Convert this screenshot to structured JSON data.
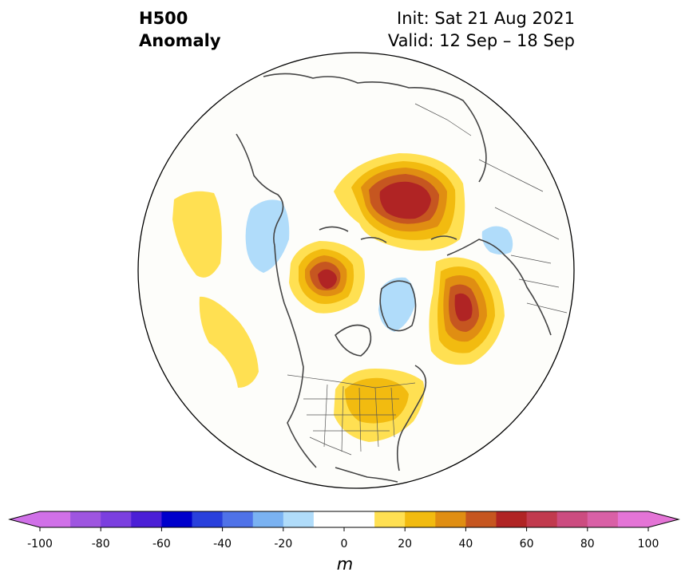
{
  "title": {
    "left_line1": "H500",
    "left_line2": "Anomaly",
    "right_line1": "Init: Sat 21 Aug 2021",
    "right_line2": "Valid: 12 Sep – 18 Sep"
  },
  "colorbar": {
    "unit": "m",
    "ticks": [
      "-100",
      "-80",
      "-60",
      "-40",
      "-20",
      "0",
      "20",
      "40",
      "60",
      "80",
      "100"
    ],
    "bins": [
      {
        "from": -100,
        "to": -90,
        "color": "#d070e8"
      },
      {
        "from": -90,
        "to": -80,
        "color": "#9e55e0"
      },
      {
        "from": -80,
        "to": -70,
        "color": "#7b3fdf"
      },
      {
        "from": -70,
        "to": -60,
        "color": "#4b1fd6"
      },
      {
        "from": -60,
        "to": -50,
        "color": "#0000cc"
      },
      {
        "from": -50,
        "to": -40,
        "color": "#2940dc"
      },
      {
        "from": -40,
        "to": -30,
        "color": "#4f72e8"
      },
      {
        "from": -30,
        "to": -20,
        "color": "#7ab2f2"
      },
      {
        "from": -20,
        "to": -10,
        "color": "#b0dcfa"
      },
      {
        "from": -10,
        "to": 10,
        "color": "#ffffff"
      },
      {
        "from": 10,
        "to": 20,
        "color": "#ffe052"
      },
      {
        "from": 20,
        "to": 30,
        "color": "#f2bb10"
      },
      {
        "from": 30,
        "to": 40,
        "color": "#e08e12"
      },
      {
        "from": 40,
        "to": 50,
        "color": "#c65620"
      },
      {
        "from": 50,
        "to": 60,
        "color": "#b02424"
      },
      {
        "from": 60,
        "to": 70,
        "color": "#c13a4e"
      },
      {
        "from": 70,
        "to": 80,
        "color": "#cc4c80"
      },
      {
        "from": 80,
        "to": 90,
        "color": "#d960a6"
      },
      {
        "from": 90,
        "to": 100,
        "color": "#e474d6"
      }
    ],
    "extend_low_color": "#d070e8",
    "extend_high_color": "#e474d6"
  },
  "map": {
    "projection": "north-polar-stereographic",
    "background": "#fdfdfa"
  }
}
